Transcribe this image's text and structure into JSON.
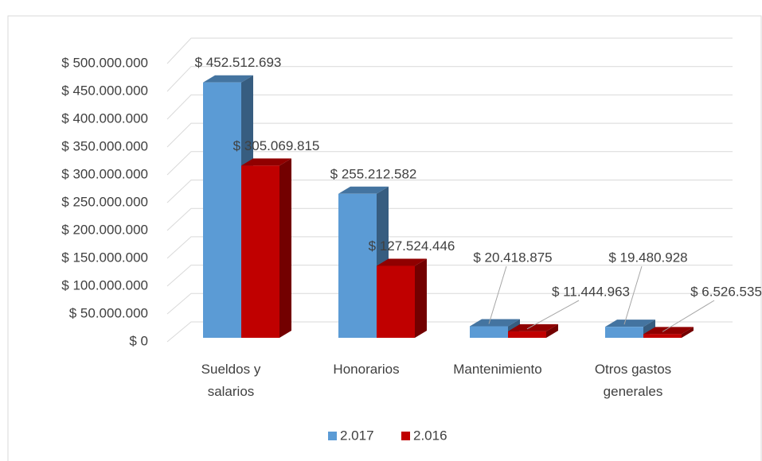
{
  "chart_data": {
    "type": "bar3d",
    "categories": [
      "Sueldos y salarios",
      "Honorarios",
      "Mantenimiento",
      "Otros gastos generales"
    ],
    "series": [
      {
        "name": "2.017",
        "color": "#5b9bd5",
        "values": [
          452512693,
          255212582,
          20418875,
          19480928
        ],
        "value_labels": [
          "$ 452.512.693",
          "$ 255.212.582",
          "$ 20.418.875",
          "$ 19.480.928"
        ]
      },
      {
        "name": "2.016",
        "color": "#c00000",
        "values": [
          305069815,
          127524446,
          11444963,
          6526535
        ],
        "value_labels": [
          "$ 305.069.815",
          "$ 127.524.446",
          "$ 11.444.963",
          "$ 6.526.535"
        ]
      }
    ],
    "ylim": [
      0,
      500000000
    ],
    "yticks": [
      {
        "value": 0,
        "label": "$ 0"
      },
      {
        "value": 50000000,
        "label": "$ 50.000.000"
      },
      {
        "value": 100000000,
        "label": "$ 100.000.000"
      },
      {
        "value": 150000000,
        "label": "$ 150.000.000"
      },
      {
        "value": 200000000,
        "label": "$ 200.000.000"
      },
      {
        "value": 250000000,
        "label": "$ 250.000.000"
      },
      {
        "value": 300000000,
        "label": "$ 300.000.000"
      },
      {
        "value": 350000000,
        "label": "$ 350.000.000"
      },
      {
        "value": 400000000,
        "label": "$ 400.000.000"
      },
      {
        "value": 450000000,
        "label": "$ 450.000.000"
      },
      {
        "value": 500000000,
        "label": "$ 500.000.000"
      }
    ],
    "grid": true,
    "legend": "bottom"
  }
}
